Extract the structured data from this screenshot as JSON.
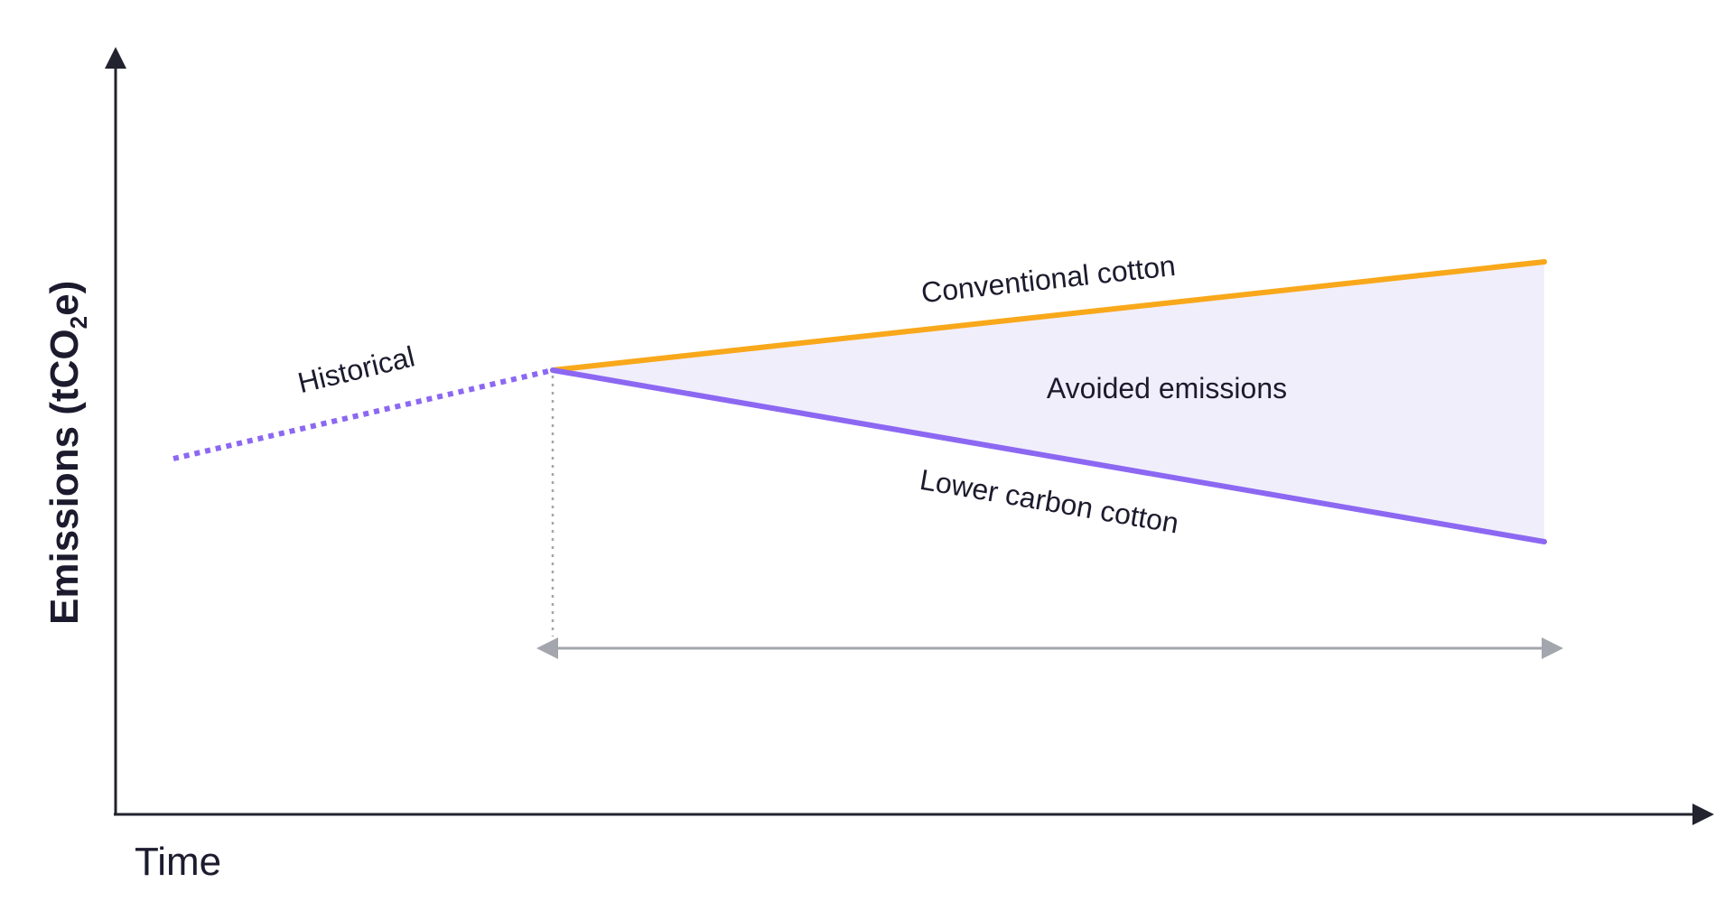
{
  "diagram": {
    "y_axis_label": "Emissions (tCO",
    "y_axis_subscript": "2",
    "y_axis_suffix": "e)",
    "x_axis_label": "Time",
    "historical_label": "Historical",
    "conventional_label": "Conventional cotton",
    "lower_carbon_label": "Lower carbon cotton",
    "avoided_label": "Avoided emissions"
  },
  "colors": {
    "axis": "#23232f",
    "conventional": "#f8a81a",
    "lower_carbon": "#8c68f2",
    "historical": "#8c68f2",
    "avoided_fill": "#f1eefc",
    "span_arrow": "#a3a6ad",
    "guide": "#a3a6ad",
    "text": "#1c1b2e"
  }
}
